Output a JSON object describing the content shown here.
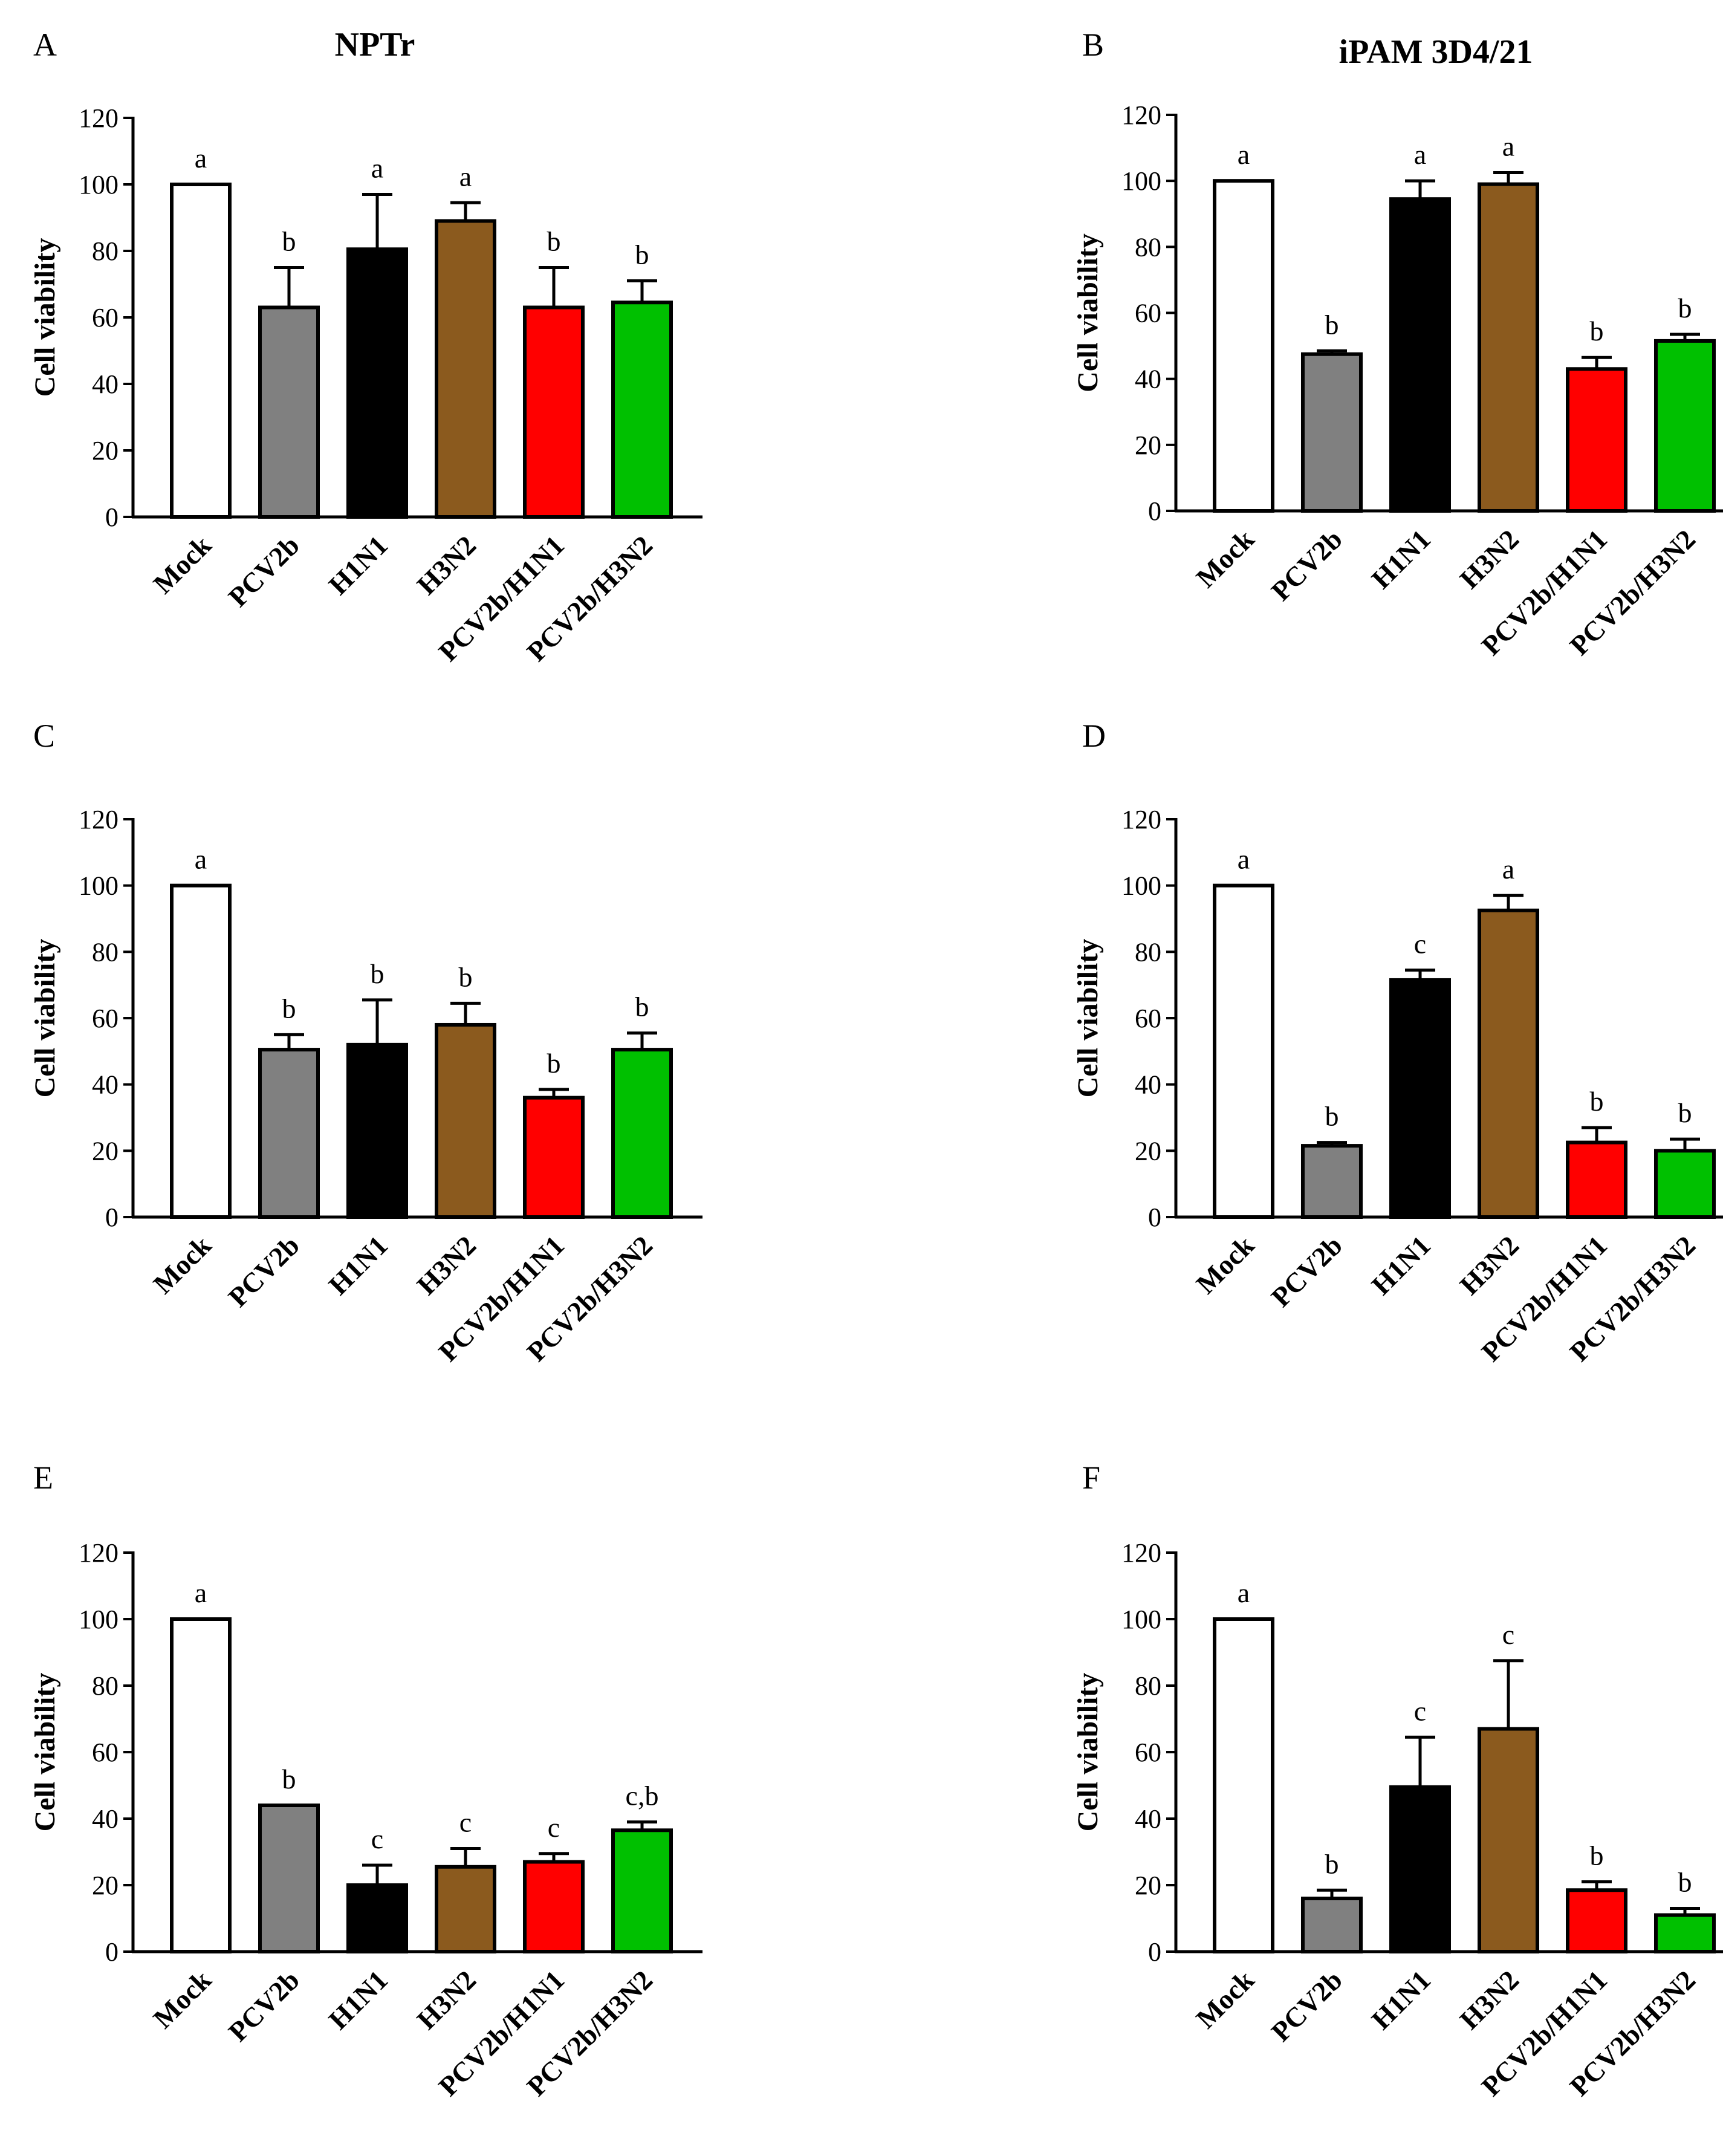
{
  "chart_data": [
    {
      "panel": "A",
      "type": "bar",
      "title": "NPTr",
      "ylabel": "Cell viability",
      "xlabel": "",
      "ylim": [
        0,
        120
      ],
      "yticks": [
        0,
        20,
        40,
        60,
        80,
        100,
        120
      ],
      "categories": [
        "Mock",
        "PCV2b",
        "H1N1",
        "H3N2",
        "PCV2b/H1N1",
        "PCV2b/H3N2"
      ],
      "values": [
        100,
        63,
        80.5,
        89,
        63,
        64.5
      ],
      "errors": [
        0,
        12,
        16.5,
        5.5,
        12,
        6.5
      ],
      "significance": [
        "a",
        "b",
        "a",
        "a",
        "b",
        "b"
      ]
    },
    {
      "panel": "B",
      "type": "bar",
      "title": "iPAM 3D4/21",
      "ylabel": "Cell viability",
      "xlabel": "",
      "ylim": [
        0,
        120
      ],
      "yticks": [
        0,
        20,
        40,
        60,
        80,
        100,
        120
      ],
      "categories": [
        "Mock",
        "PCV2b",
        "H1N1",
        "H3N2",
        "PCV2b/H1N1",
        "PCV2b/H3N2"
      ],
      "values": [
        100,
        47.5,
        94.5,
        99,
        43,
        51.5
      ],
      "errors": [
        0,
        1,
        5.5,
        3.5,
        3.5,
        2
      ],
      "significance": [
        "a",
        "b",
        "a",
        "a",
        "b",
        "b"
      ]
    },
    {
      "panel": "C",
      "type": "bar",
      "title": "",
      "ylabel": "Cell viability",
      "xlabel": "",
      "ylim": [
        0,
        120
      ],
      "yticks": [
        0,
        20,
        40,
        60,
        80,
        100,
        120
      ],
      "categories": [
        "Mock",
        "PCV2b",
        "H1N1",
        "H3N2",
        "PCV2b/H1N1",
        "PCV2b/H3N2"
      ],
      "values": [
        100,
        50.5,
        52,
        58,
        36,
        50.5
      ],
      "errors": [
        0,
        4.5,
        13.5,
        6.5,
        2.5,
        5
      ],
      "significance": [
        "a",
        "b",
        "b",
        "b",
        "b",
        "b"
      ]
    },
    {
      "panel": "D",
      "type": "bar",
      "title": "",
      "ylabel": "Cell viability",
      "xlabel": "",
      "ylim": [
        0,
        120
      ],
      "yticks": [
        0,
        20,
        40,
        60,
        80,
        100,
        120
      ],
      "categories": [
        "Mock",
        "PCV2b",
        "H1N1",
        "H3N2",
        "PCV2b/H1N1",
        "PCV2b/H3N2"
      ],
      "values": [
        100,
        21.5,
        71.5,
        92.5,
        22.5,
        20
      ],
      "errors": [
        0,
        1,
        3,
        4.5,
        4.5,
        3.5
      ],
      "significance": [
        "a",
        "b",
        "c",
        "a",
        "b",
        "b"
      ]
    },
    {
      "panel": "E",
      "type": "bar",
      "title": "",
      "ylabel": "Cell viability",
      "xlabel": "",
      "ylim": [
        0,
        120
      ],
      "yticks": [
        0,
        20,
        40,
        60,
        80,
        100,
        120
      ],
      "categories": [
        "Mock",
        "PCV2b",
        "H1N1",
        "H3N2",
        "PCV2b/H1N1",
        "PCV2b/H3N2"
      ],
      "values": [
        100,
        44,
        20,
        25.5,
        27,
        36.5
      ],
      "errors": [
        0,
        0,
        6,
        5.5,
        2.5,
        2.5
      ],
      "significance": [
        "a",
        "b",
        "c",
        "c",
        "c",
        "c,b"
      ]
    },
    {
      "panel": "F",
      "type": "bar",
      "title": "",
      "ylabel": "Cell viability",
      "xlabel": "",
      "ylim": [
        0,
        120
      ],
      "yticks": [
        0,
        20,
        40,
        60,
        80,
        100,
        120
      ],
      "categories": [
        "Mock",
        "PCV2b",
        "H1N1",
        "H3N2",
        "PCV2b/H1N1",
        "PCV2b/H3N2"
      ],
      "values": [
        100,
        16,
        49.5,
        67,
        18.5,
        11
      ],
      "errors": [
        0,
        2.5,
        15,
        20.5,
        2.5,
        2
      ],
      "significance": [
        "a",
        "b",
        "c",
        "c",
        "b",
        "b"
      ]
    }
  ],
  "bar_colors": [
    "#ffffff",
    "#808080",
    "#000000",
    "#8b5a1e",
    "#ff0000",
    "#00c000"
  ]
}
